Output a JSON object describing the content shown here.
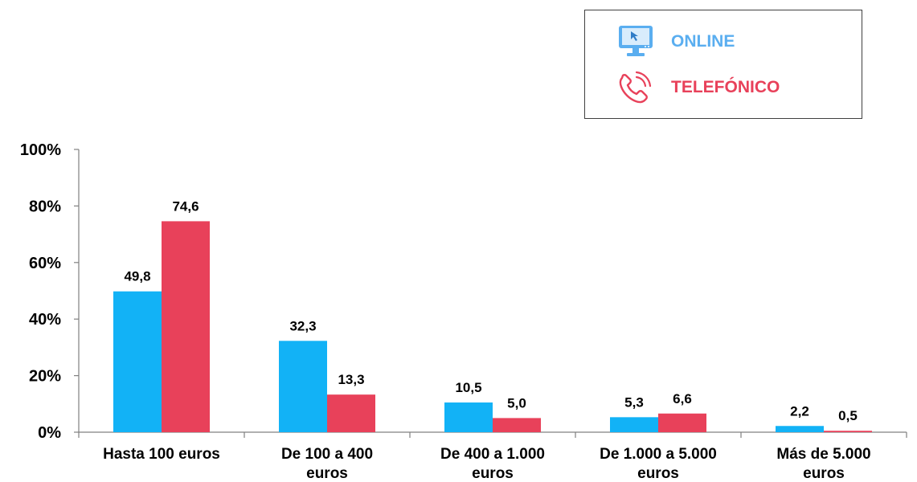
{
  "legend": {
    "online_label": "ONLINE",
    "phone_label": "TELEFÓNICO",
    "online_icon": "computer-monitor-icon",
    "phone_icon": "phone-ringing-icon"
  },
  "colors": {
    "online": "#12B2F6",
    "phone": "#E8415A",
    "axis": "#808080"
  },
  "chart_data": {
    "type": "bar",
    "categories": [
      [
        "Hasta 100 euros"
      ],
      [
        "De 100 a 400",
        "euros"
      ],
      [
        "De 400 a 1.000",
        "euros"
      ],
      [
        "De 1.000 a 5.000",
        "euros"
      ],
      [
        "Más de 5.000",
        "euros"
      ]
    ],
    "series": [
      {
        "name": "ONLINE",
        "values": [
          49.8,
          32.3,
          10.5,
          5.3,
          2.2
        ],
        "labels": [
          "49,8",
          "32,3",
          "10,5",
          "5,3",
          "2,2"
        ]
      },
      {
        "name": "TELEFÓNICO",
        "values": [
          74.6,
          13.3,
          5.0,
          6.6,
          0.5
        ],
        "labels": [
          "74,6",
          "13,3",
          "5,0",
          "6,6",
          "0,5"
        ]
      }
    ],
    "yticks": [
      {
        "value": 0,
        "label": "0%"
      },
      {
        "value": 20,
        "label": "20%"
      },
      {
        "value": 40,
        "label": "40%"
      },
      {
        "value": 60,
        "label": "60%"
      },
      {
        "value": 80,
        "label": "80%"
      },
      {
        "value": 100,
        "label": "100%"
      }
    ],
    "ylim": [
      0,
      100
    ],
    "grid": false,
    "legend_position": "top-right"
  }
}
